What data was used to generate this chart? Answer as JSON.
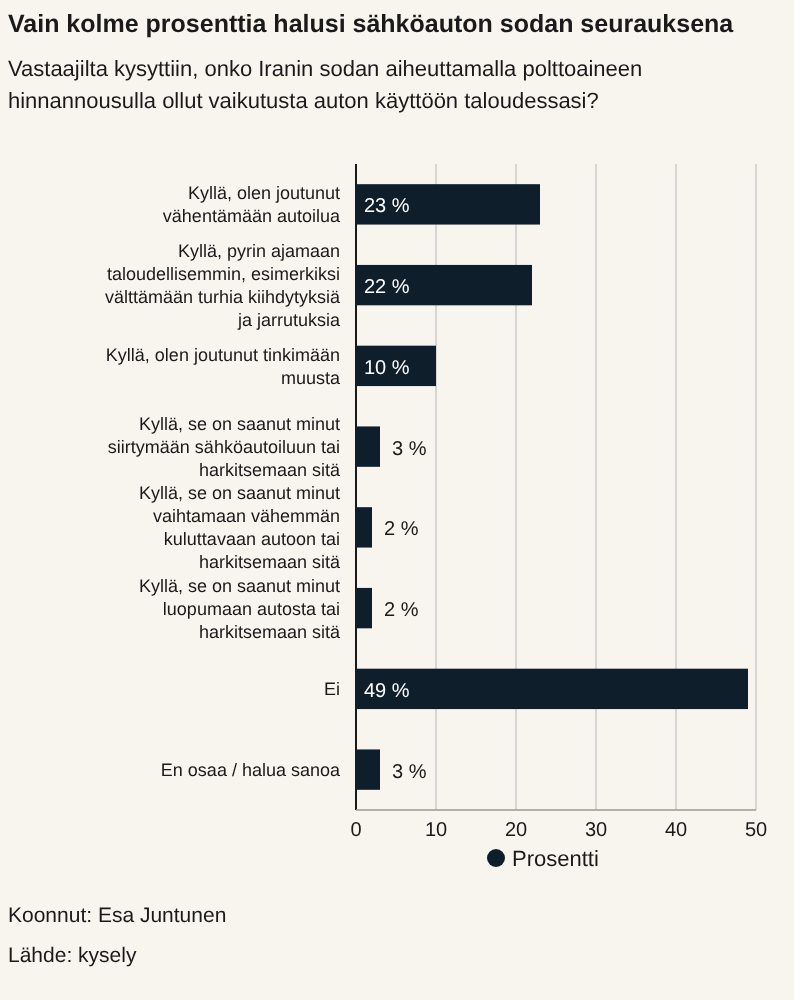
{
  "chart_data": {
    "type": "bar",
    "orientation": "horizontal",
    "title": "Vain kolme prosenttia halusi sähköauton sodan seurauksena",
    "subtitle": "Vastaajilta kysyttiin, onko Iranin sodan aiheuttamalla polttoaineen hinnannousulla ollut vaikutusta auton käyttöön taloudessasi?",
    "categories": [
      "Kyllä, olen joutunut vähentämään autoilua",
      "Kyllä, pyrin ajamaan taloudellisemmin, esimerkiksi välttämään turhia kiihdytyksiä ja jarrutuksia",
      "Kyllä, olen joutunut tinkimään muusta",
      "Kyllä, se on saanut minut siirtymään sähköautoiluun tai harkitsemaan sitä",
      "Kyllä, se on saanut minut vaihtamaan vähemmän kuluttavaan autoon tai harkitsemaan sitä",
      "Kyllä, se on saanut minut luopumaan autosta tai harkitsemaan sitä",
      "Ei",
      "En osaa / halua sanoa"
    ],
    "series": [
      {
        "name": "Prosentti",
        "color": "#0f1e2b",
        "values": [
          23,
          22,
          10,
          3,
          2,
          2,
          49,
          3
        ],
        "value_labels": [
          "23 %",
          "22 %",
          "10 %",
          "3 %",
          "2 %",
          "2 %",
          "49 %",
          "3 %"
        ]
      }
    ],
    "xlim": [
      0,
      50
    ],
    "xticks": [
      0,
      10,
      20,
      30,
      40,
      50
    ],
    "grid": "x",
    "legend": "bottom",
    "annotations": [
      "Koonnut: Esa Juntunen",
      "Lähde: kysely"
    ]
  }
}
